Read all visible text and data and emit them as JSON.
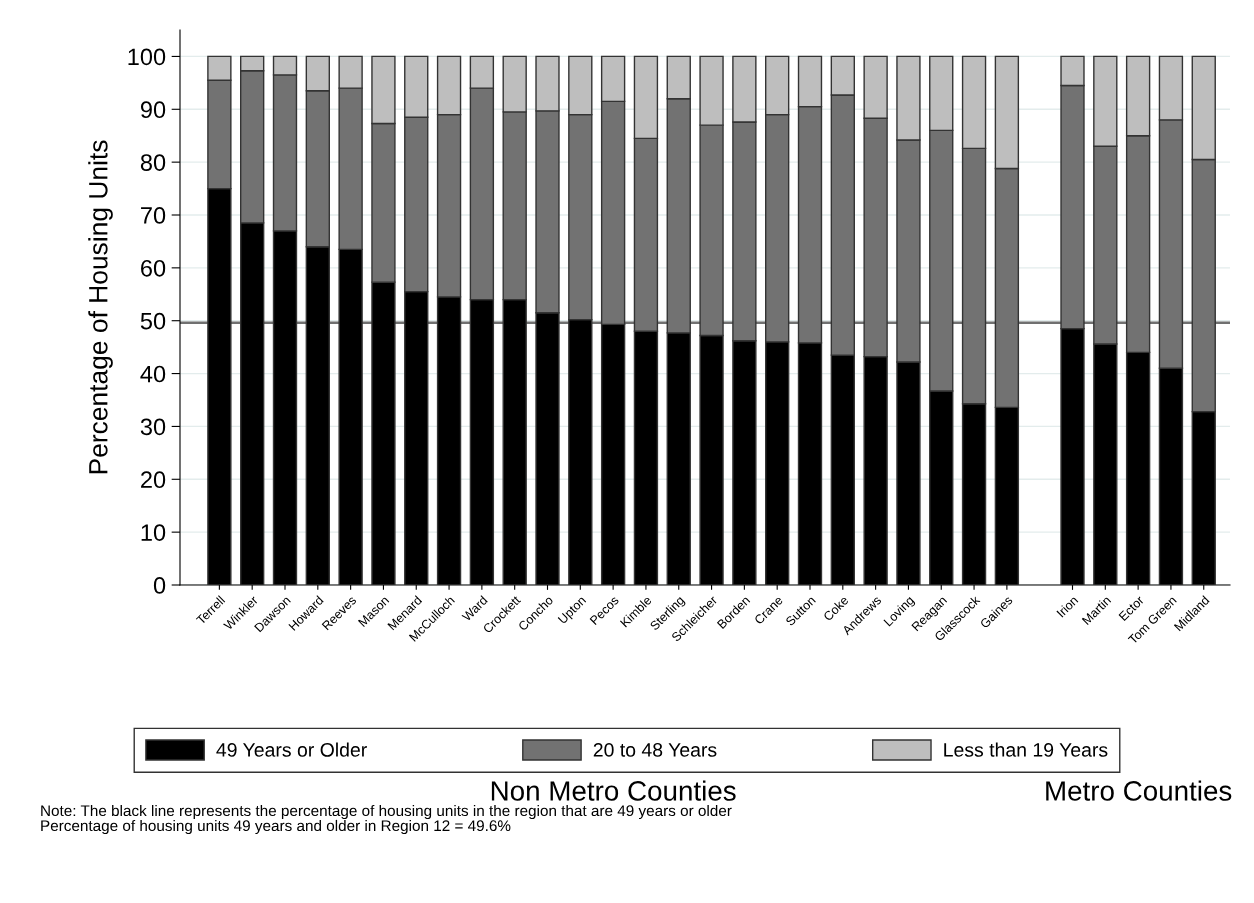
{
  "chart_data": {
    "type": "bar",
    "stacked": true,
    "ylabel": "Percentage of Housing Units",
    "categories": [
      "Terrell",
      "Winkler",
      "Dawson",
      "Howard",
      "Reeves",
      "Mason",
      "Menard",
      "McCulloch",
      "Ward",
      "Crockett",
      "Concho",
      "Upton",
      "Pecos",
      "Kimble",
      "Sterling",
      "Schleicher",
      "Borden",
      "Crane",
      "Sutton",
      "Coke",
      "Andrews",
      "Loving",
      "Reagan",
      "Glasscock",
      "Gaines",
      null,
      "Irion",
      "Martin",
      "Ector",
      "Tom Green",
      "Midland"
    ],
    "series": [
      {
        "name": "49 Years or Older",
        "color": "#000000",
        "values": [
          75,
          68.5,
          67,
          64,
          63.5,
          57.3,
          55.5,
          54.5,
          54,
          54,
          51.5,
          50.2,
          49.3,
          48,
          47.7,
          47.2,
          46.2,
          46,
          45.8,
          43.5,
          43.2,
          42.2,
          36.7,
          34.3,
          33.6,
          null,
          48.5,
          45.6,
          44,
          41,
          32.8
        ]
      },
      {
        "name": "20 to 48 Years",
        "color": "#727272",
        "values": [
          20.5,
          28.8,
          29.5,
          29.5,
          30.5,
          30,
          33,
          34.5,
          40,
          35.5,
          38.2,
          38.8,
          42.2,
          36.5,
          44.3,
          39.8,
          41.4,
          43,
          44.7,
          49.2,
          45.1,
          42,
          49.3,
          48.3,
          45.2,
          null,
          46,
          37.4,
          41,
          47,
          47.7
        ]
      },
      {
        "name": "Less than 19 Years",
        "color": "#bebebe",
        "values": [
          4.5,
          2.7,
          3.5,
          6.5,
          6,
          12.7,
          11.5,
          11,
          6,
          10.5,
          10.3,
          11,
          8.5,
          15.5,
          8,
          13,
          12.4,
          11,
          9.5,
          7.3,
          11.7,
          15.8,
          14,
          17.4,
          21.2,
          null,
          5.5,
          17,
          15,
          12,
          19.5
        ]
      }
    ],
    "ylim": [
      0,
      105
    ],
    "yticks": [
      0,
      10,
      20,
      30,
      40,
      50,
      60,
      70,
      80,
      90,
      100
    ],
    "grid": "y",
    "legend": "bottom",
    "ref_lines": [
      {
        "axis": "y",
        "value": 49.6,
        "color": "#707070"
      }
    ],
    "annotations": [
      "Non Metro Counties",
      "Metro Counties",
      "Note: The black line represents the percentage of housing units in the region that are 49 years or older",
      "Percentage of housing units 49 years and older in Region 12 = 49.6%"
    ]
  }
}
